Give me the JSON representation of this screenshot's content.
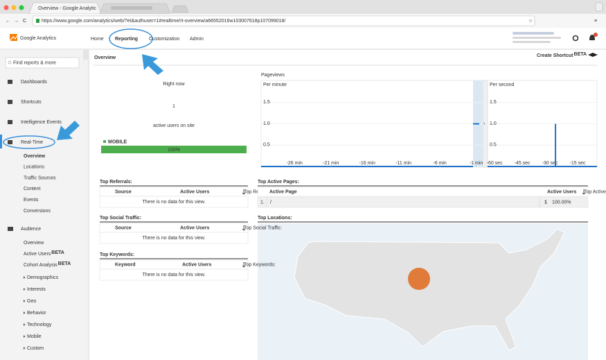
{
  "browser": {
    "tab_title": "Overview - Google Analytic",
    "url": "https://www.google.com/analytics/web/?et&authuser=1#realtime/rt-overview/a66552016w103007618p107099018/"
  },
  "header": {
    "logo": "Google Analytics",
    "nav": [
      "Home",
      "Reporting",
      "Customization",
      "Admin"
    ]
  },
  "sidebar": {
    "search_placeholder": "Find reports & more",
    "items": [
      "Dashboards",
      "Shortcuts",
      "Intelligence Events",
      "Real-Time"
    ],
    "realtime_items": [
      "Overview",
      "Locations",
      "Traffic Sources",
      "Content",
      "Events",
      "Conversions"
    ],
    "audience": "Audience",
    "audience_items": [
      {
        "label": "Overview"
      },
      {
        "label": "Active Users",
        "badge": "BETA"
      },
      {
        "label": "Cohort Analysis",
        "badge": "BETA"
      },
      {
        "label": "Demographics",
        "expandable": true
      },
      {
        "label": "Interests",
        "expandable": true
      },
      {
        "label": "Geo",
        "expandable": true
      },
      {
        "label": "Behavior",
        "expandable": true
      },
      {
        "label": "Technology",
        "expandable": true
      },
      {
        "label": "Mobile",
        "expandable": true
      },
      {
        "label": "Custom",
        "expandable": true
      }
    ]
  },
  "main": {
    "title": "Overview",
    "create_shortcut": "Create Shortcut",
    "create_shortcut_badge": "BETA",
    "right_now": {
      "heading": "Right now",
      "count": 1,
      "caption": "active users on site",
      "device": "MOBILE",
      "device_share": 100,
      "device_share_label": "100%"
    },
    "pageviews": {
      "title": "Pageviews",
      "per_minute": {
        "title": "Per minute",
        "ylim": [
          0,
          2
        ],
        "yticks": [
          0.5,
          {
            "value": 1,
            "label": "1.0"
          },
          1.5
        ],
        "xlim": [
          -30.6,
          -0.1
        ],
        "xticks": [
          {
            "value": -26,
            "label": "-26 min"
          },
          {
            "value": -21,
            "label": "-21 min"
          },
          {
            "value": -16,
            "label": "-16 min"
          },
          {
            "value": -11,
            "label": "-11 min"
          },
          {
            "value": -6,
            "label": "-6 min"
          },
          {
            "value": -1,
            "label": "-1 min"
          }
        ],
        "x": [
          -1
        ],
        "values": [
          1
        ]
      },
      "per_second": {
        "title": "Per second",
        "ylim": [
          0,
          2
        ],
        "yticks": [
          0.5,
          {
            "value": 1,
            "label": "1.0"
          },
          1.5
        ],
        "xlim": [
          -63.8,
          -4.5
        ],
        "xticks": [
          {
            "value": -60,
            "label": "-60 sec"
          },
          {
            "value": -45,
            "label": "-45 sec"
          },
          {
            "value": -30,
            "label": "-30 sec"
          },
          {
            "value": -15,
            "label": "-15 sec"
          }
        ],
        "x": [
          -27
        ],
        "values": [
          1
        ]
      }
    },
    "referrals": {
      "title": "Top Referrals:",
      "columns": [
        "Source",
        "Active Users"
      ],
      "empty": "There is no data for this view."
    },
    "social": {
      "title": "Top Social Traffic:",
      "columns": [
        "Source",
        "Active Users"
      ],
      "empty": "There is no data for this view."
    },
    "keywords": {
      "title": "Top Keywords:",
      "columns": [
        "Keyword",
        "Active Users"
      ],
      "empty": "There is no data for this view."
    },
    "active_pages": {
      "title": "Top Active Pages:",
      "columns": [
        "Active Page",
        "Active Users"
      ],
      "rows": [
        [
          "1.",
          "/",
          "1",
          "100.00%"
        ]
      ]
    },
    "locations": {
      "title": "Top Locations:"
    }
  }
}
